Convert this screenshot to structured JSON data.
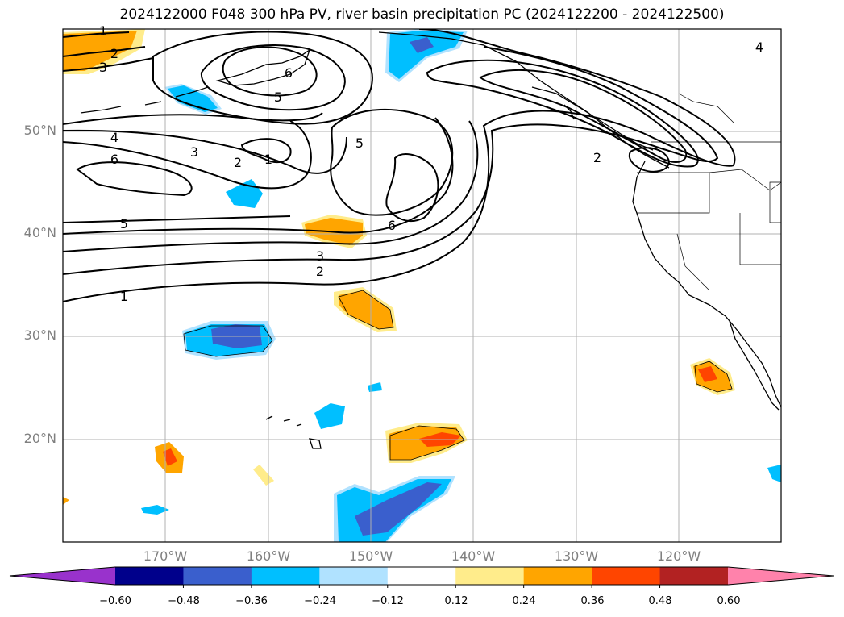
{
  "title": "2024122000 F048 300 hPa PV, river basin precipitation PC (2024122200 - 2024122500)",
  "lat_labels": [
    "50°N",
    "40°N",
    "30°N",
    "20°N"
  ],
  "lon_labels": [
    "170°W",
    "160°W",
    "150°W",
    "140°W",
    "130°W",
    "120°W"
  ],
  "colorbar": {
    "ticks": [
      "−0.60",
      "−0.48",
      "−0.36",
      "−0.24",
      "−0.12",
      "0.12",
      "0.24",
      "0.36",
      "0.48",
      "0.60"
    ],
    "colors": [
      "#9932cc",
      "#00008b",
      "#3a5fcd",
      "#00bfff",
      "#b0e2ff",
      "#ffffff",
      "#ffec8b",
      "#ffa500",
      "#ff4500",
      "#b22222",
      "#ff82ab"
    ]
  },
  "contour_labels": [
    "1",
    "2",
    "3",
    "6",
    "5",
    "4",
    "6",
    "3",
    "2",
    "1",
    "5",
    "5",
    "6",
    "3",
    "2",
    "1",
    "2",
    "4"
  ],
  "map_extent": {
    "lon": [
      -180,
      -110
    ],
    "lat": [
      10,
      60
    ]
  }
}
